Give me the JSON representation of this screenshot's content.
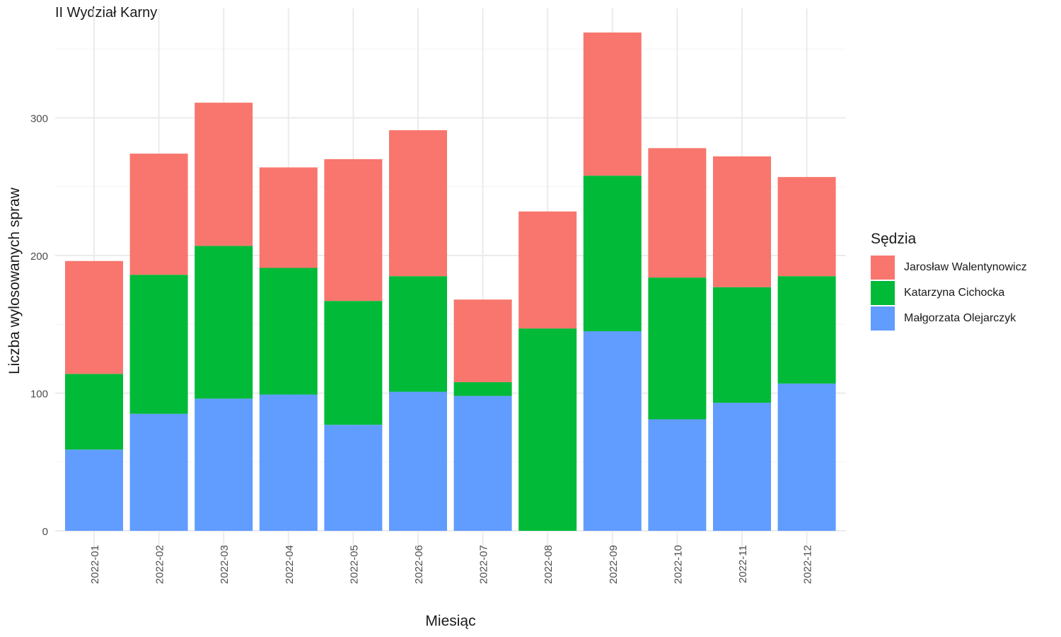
{
  "chart_data": {
    "type": "bar",
    "stacked": true,
    "title": "II Wydział Karny",
    "xlabel": "Miesiąc",
    "ylabel": "Liczba wylosowanych spraw",
    "ylim": [
      0,
      370
    ],
    "yticks": [
      0,
      100,
      200,
      300
    ],
    "grid": true,
    "legend_position": "right",
    "legend_title": "Sędzia",
    "categories": [
      "2022-01",
      "2022-02",
      "2022-03",
      "2022-04",
      "2022-05",
      "2022-06",
      "2022-07",
      "2022-08",
      "2022-09",
      "2022-10",
      "2022-11",
      "2022-12"
    ],
    "series": [
      {
        "name": "Małgorzata Olejarczyk",
        "color": "#619CFF",
        "values": [
          59,
          85,
          96,
          99,
          77,
          101,
          98,
          0,
          145,
          81,
          93,
          107
        ]
      },
      {
        "name": "Katarzyna Cichocka",
        "color": "#00BA38",
        "values": [
          55,
          101,
          111,
          92,
          90,
          84,
          10,
          147,
          113,
          103,
          84,
          78
        ]
      },
      {
        "name": "Jarosław Walentynowicz",
        "color": "#F8766D",
        "values": [
          82,
          88,
          104,
          73,
          103,
          106,
          60,
          85,
          104,
          94,
          95,
          72
        ]
      }
    ],
    "legend_order": [
      "Jarosław Walentynowicz",
      "Katarzyna Cichocka",
      "Małgorzata Olejarczyk"
    ]
  }
}
